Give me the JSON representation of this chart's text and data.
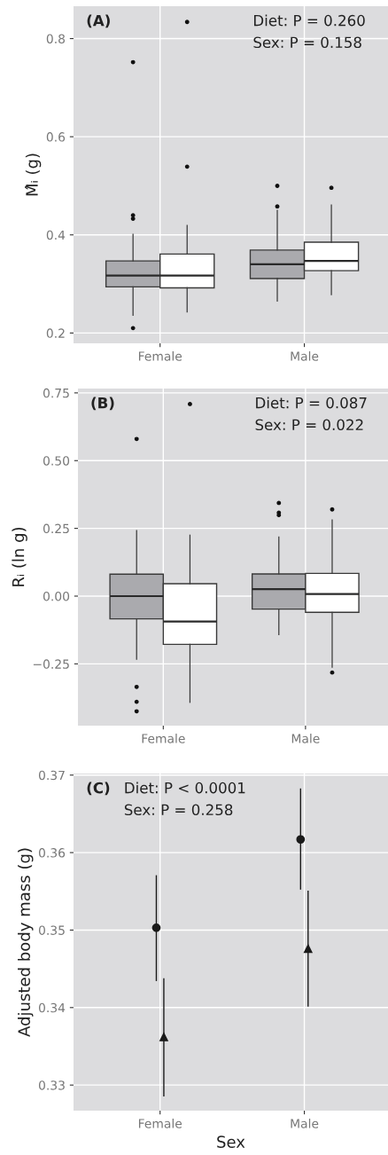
{
  "chart_data": [
    {
      "type": "box",
      "ylabel": "M̂ᵢ (g)",
      "categories": [
        "Female",
        "Male"
      ],
      "ylim": [
        0.179,
        0.866
      ],
      "yticks": [
        0.2,
        0.4,
        0.6,
        0.8
      ],
      "grid": true,
      "annotations": [
        "(A)",
        "Diet: P = 0.260",
        "Sex: P = 0.158"
      ],
      "series": [
        {
          "color": "#aaaaae",
          "boxes": [
            {
              "low": 0.236,
              "q1": 0.294,
              "median": 0.317,
              "q3": 0.347,
              "high": 0.401,
              "outliers": [
                0.752,
                0.44,
                0.433,
                0.21
              ]
            },
            {
              "low": 0.265,
              "q1": 0.311,
              "median": 0.34,
              "q3": 0.369,
              "high": 0.45,
              "outliers": [
                0.5,
                0.458
              ]
            }
          ]
        },
        {
          "color": "#ffffff",
          "boxes": [
            {
              "low": 0.243,
              "q1": 0.292,
              "median": 0.317,
              "q3": 0.361,
              "high": 0.419,
              "outliers": [
                0.834,
                0.539
              ]
            },
            {
              "low": 0.278,
              "q1": 0.327,
              "median": 0.347,
              "q3": 0.385,
              "high": 0.461,
              "outliers": [
                0.496
              ]
            }
          ]
        }
      ]
    },
    {
      "type": "box",
      "ylabel": "Rᵢ (ln g)",
      "categories": [
        "Female",
        "Male"
      ],
      "ylim": [
        -0.478,
        0.766
      ],
      "yticks": [
        {
          "value": -0.25,
          "label": "−0.25"
        },
        {
          "value": 0,
          "label": "0.00"
        },
        {
          "value": 0.25,
          "label": "0.25"
        },
        {
          "value": 0.5,
          "label": "0.50"
        },
        {
          "value": 0.75,
          "label": "0.75"
        }
      ],
      "grid": true,
      "annotations": [
        "(B)",
        "Diet: P = 0.087",
        "Sex: P = 0.022"
      ],
      "series": [
        {
          "color": "#aaaaae",
          "boxes": [
            {
              "low": -0.233,
              "q1": -0.084,
              "median": 0.0,
              "q3": 0.081,
              "high": 0.242,
              "outliers": [
                0.58,
                -0.335,
                -0.39,
                -0.425
              ]
            },
            {
              "low": -0.142,
              "q1": -0.048,
              "median": 0.026,
              "q3": 0.082,
              "high": 0.218,
              "outliers": [
                0.344,
                0.308,
                0.299
              ]
            }
          ]
        },
        {
          "color": "#ffffff",
          "boxes": [
            {
              "low": -0.392,
              "q1": -0.178,
              "median": -0.094,
              "q3": 0.046,
              "high": 0.225,
              "outliers": [
                0.709
              ]
            },
            {
              "low": -0.262,
              "q1": -0.06,
              "median": 0.008,
              "q3": 0.084,
              "high": 0.281,
              "outliers": [
                0.32,
                -0.282
              ]
            }
          ]
        }
      ]
    },
    {
      "type": "scatter",
      "xlabel": "Sex",
      "ylabel": "Adjusted body mass (g)",
      "categories": [
        "Female",
        "Male"
      ],
      "ylim": [
        0.3267,
        0.3702
      ],
      "yticks": [
        0.33,
        0.34,
        0.35,
        0.36,
        0.37
      ],
      "grid": true,
      "annotations": [
        "(C)",
        "Diet: P < 0.0001",
        "Sex: P = 0.258"
      ],
      "series": [
        {
          "color": "#1a1a1a",
          "marker": "circle",
          "values": [
            0.3503,
            0.3617
          ],
          "errors": [
            [
              0.3435,
              0.357
            ],
            [
              0.3553,
              0.3682
            ]
          ]
        },
        {
          "color": "#1a1a1a",
          "marker": "triangle",
          "values": [
            0.3362,
            0.3476
          ],
          "errors": [
            [
              0.3286,
              0.3437
            ],
            [
              0.3402,
              0.355
            ]
          ]
        }
      ]
    }
  ]
}
